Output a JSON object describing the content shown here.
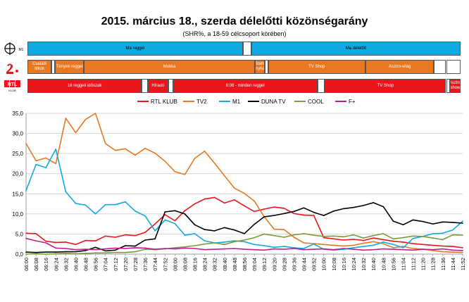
{
  "title": "2015. március 18., szerda délelőtti közönségarány",
  "subtitle": "(SHR%, a 18-59 célcsoport körében)",
  "channel_logos": [
    {
      "icon": "m1-logo-icon",
      "caption": "M1"
    },
    {
      "icon": "tv2-logo-icon",
      "caption": ""
    },
    {
      "icon": "rtl-klub-logo-icon",
      "text": "RTL",
      "caption": "KLUB"
    }
  ],
  "programmes": {
    "m1": [
      {
        "label": "Ma reggel",
        "start": "06:00",
        "end": "08:59",
        "color": "#12a8e1"
      },
      {
        "label": "",
        "start": "08:59",
        "end": "09:06",
        "color": "#ffffff"
      },
      {
        "label": "Ma délelőtt",
        "start": "09:06",
        "end": "12:00",
        "color": "#12a8e1"
      }
    ],
    "tv2": [
      {
        "label": "Családi titkok",
        "start": "06:00",
        "end": "06:20",
        "color": "#e87722"
      },
      {
        "label": "",
        "start": "06:20",
        "end": "06:23",
        "color": "#ffffff"
      },
      {
        "label": "Tények reggel",
        "start": "06:23",
        "end": "06:47",
        "color": "#e87722"
      },
      {
        "label": "Mokka",
        "start": "06:47",
        "end": "09:09",
        "color": "#e87722"
      },
      {
        "label": "Stahl konyhája",
        "start": "09:09",
        "end": "09:17",
        "color": "#e87722"
      },
      {
        "label": "",
        "start": "09:17",
        "end": "09:20",
        "color": "#ffffff"
      },
      {
        "label": "TV Shop",
        "start": "09:20",
        "end": "10:41",
        "color": "#e87722"
      },
      {
        "label": "Asztro-világ",
        "start": "10:41",
        "end": "11:38",
        "color": "#e87722"
      },
      {
        "label": "",
        "start": "11:38",
        "end": "11:48",
        "color": "#ffffff"
      },
      {
        "label": "",
        "start": "11:48",
        "end": "12:00",
        "color": "#ffffff"
      }
    ],
    "rtl": [
      {
        "label": "16 reggeli időszak",
        "start": "06:00",
        "end": "07:35",
        "color": "#e8161b"
      },
      {
        "label": "",
        "start": "07:35",
        "end": "07:40",
        "color": "#ffffff"
      },
      {
        "label": "Híradó",
        "start": "07:40",
        "end": "07:57",
        "color": "#e8161b"
      },
      {
        "label": "",
        "start": "07:57",
        "end": "08:01",
        "color": "#ffffff"
      },
      {
        "label": "8:08 - minden reggel",
        "start": "08:01",
        "end": "10:01",
        "color": "#e8161b"
      },
      {
        "label": "",
        "start": "10:01",
        "end": "10:07",
        "color": "#ffffff"
      },
      {
        "label": "TV Shop",
        "start": "10:07",
        "end": "11:48",
        "color": "#e8161b"
      },
      {
        "label": "",
        "start": "11:48",
        "end": "11:51",
        "color": "#ffffff"
      },
      {
        "label": "Asztro show",
        "start": "11:51",
        "end": "12:00",
        "color": "#e8161b"
      }
    ]
  },
  "chart_data": {
    "type": "line",
    "x_labels": [
      "06:00",
      "06:08",
      "06:16",
      "06:24",
      "06:32",
      "06:40",
      "06:48",
      "06:56",
      "07:04",
      "07:12",
      "07:20",
      "07:28",
      "07:36",
      "07:44",
      "07:52",
      "08:00",
      "08:08",
      "08:16",
      "08:24",
      "08:32",
      "08:40",
      "08:48",
      "08:56",
      "09:04",
      "09:12",
      "09:20",
      "09:28",
      "09:36",
      "09:44",
      "09:52",
      "10:00",
      "10:08",
      "10:16",
      "10:24",
      "10:32",
      "10:40",
      "10:48",
      "10:56",
      "11:04",
      "11:12",
      "11:20",
      "11:28",
      "11:36",
      "11:44",
      "11:52"
    ],
    "ylim": [
      0,
      35
    ],
    "yticks": [
      "0,0",
      "5,0",
      "10,0",
      "15,0",
      "20,0",
      "25,0",
      "30,0",
      "35,0"
    ],
    "grid": "horizontal",
    "legend_position": "top",
    "series": [
      {
        "name": "RTL KLUB",
        "color": "#e8161b",
        "values": [
          5.2,
          5.1,
          3.2,
          2.9,
          3.0,
          2.4,
          3.4,
          3.3,
          4.5,
          4.2,
          4.8,
          4.6,
          5.4,
          7.5,
          9.8,
          8.3,
          10.8,
          12.5,
          13.7,
          14.1,
          12.7,
          13.5,
          12.0,
          10.6,
          11.2,
          11.7,
          11.4,
          10.1,
          9.7,
          9.6,
          4.1,
          3.8,
          3.5,
          3.7,
          3.4,
          4.0,
          3.6,
          3.2,
          3.0,
          2.6,
          2.4,
          2.2,
          2.0,
          1.9,
          1.6
        ]
      },
      {
        "name": "TV2",
        "color": "#e87722",
        "values": [
          27.5,
          23.2,
          23.9,
          22.5,
          33.8,
          30.2,
          33.5,
          35.0,
          27.5,
          25.8,
          26.2,
          24.6,
          26.3,
          25.1,
          23.1,
          20.5,
          19.8,
          23.8,
          25.6,
          22.6,
          19.5,
          16.4,
          15.1,
          13.2,
          9.3,
          6.2,
          6.1,
          4.2,
          2.8,
          2.6,
          2.4,
          2.2,
          2.0,
          2.2,
          2.7,
          3.1,
          2.6,
          1.6,
          1.9,
          1.4,
          1.2,
          0.9,
          0.6,
          0.5,
          0.4
        ]
      },
      {
        "name": "M1",
        "color": "#12a8e1",
        "values": [
          15.8,
          22.3,
          21.5,
          26.1,
          15.5,
          12.6,
          12.2,
          10.0,
          12.3,
          12.3,
          13.0,
          10.7,
          9.5,
          5.8,
          8.5,
          7.6,
          4.7,
          5.1,
          3.3,
          2.8,
          3.0,
          3.3,
          3.1,
          2.4,
          2.1,
          1.7,
          1.9,
          1.6,
          1.4,
          2.5,
          1.2,
          1.0,
          1.2,
          1.6,
          1.9,
          2.2,
          3.0,
          2.4,
          1.6,
          3.9,
          4.4,
          5.1,
          5.2,
          6.0,
          8.2
        ]
      },
      {
        "name": "DUNA TV",
        "color": "#000000",
        "values": [
          0.5,
          0.4,
          0.5,
          0.5,
          0.6,
          0.6,
          0.9,
          1.7,
          0.8,
          1.0,
          2.1,
          2.0,
          3.5,
          3.8,
          10.5,
          10.8,
          10.0,
          7.3,
          6.1,
          5.8,
          6.6,
          6.0,
          5.1,
          7.4,
          9.3,
          9.6,
          10.1,
          10.6,
          11.5,
          10.4,
          9.6,
          10.7,
          11.3,
          11.6,
          12.1,
          12.8,
          11.8,
          8.2,
          7.3,
          8.5,
          8.1,
          7.5,
          8.0,
          7.9,
          7.7
        ]
      },
      {
        "name": "COOL",
        "color": "#7a9a3b",
        "values": [
          0.0,
          0.1,
          0.0,
          0.1,
          0.2,
          0.1,
          0.2,
          0.3,
          0.3,
          0.4,
          0.4,
          0.6,
          1.2,
          1.1,
          1.3,
          1.6,
          1.8,
          2.1,
          2.5,
          2.8,
          2.4,
          3.1,
          3.5,
          4.1,
          5.0,
          4.6,
          4.2,
          4.8,
          5.1,
          4.7,
          4.4,
          4.5,
          4.3,
          4.8,
          4.0,
          4.6,
          5.1,
          3.8,
          4.1,
          4.5,
          4.4,
          4.0,
          3.6,
          4.8,
          4.7
        ]
      },
      {
        "name": "F+",
        "color": "#c21c8e",
        "values": [
          3.9,
          3.3,
          2.8,
          1.5,
          1.4,
          1.1,
          1.2,
          1.1,
          1.3,
          1.5,
          1.4,
          1.6,
          1.5,
          1.2,
          1.4,
          1.3,
          1.5,
          1.4,
          1.1,
          1.2,
          1.3,
          1.4,
          1.2,
          1.1,
          1.0,
          1.3,
          1.2,
          1.4,
          1.1,
          1.2,
          1.3,
          1.1,
          1.4,
          1.2,
          1.0,
          1.1,
          1.3,
          1.2,
          1.1,
          1.0,
          1.2,
          1.1,
          1.3,
          1.0,
          0.9
        ]
      }
    ]
  }
}
